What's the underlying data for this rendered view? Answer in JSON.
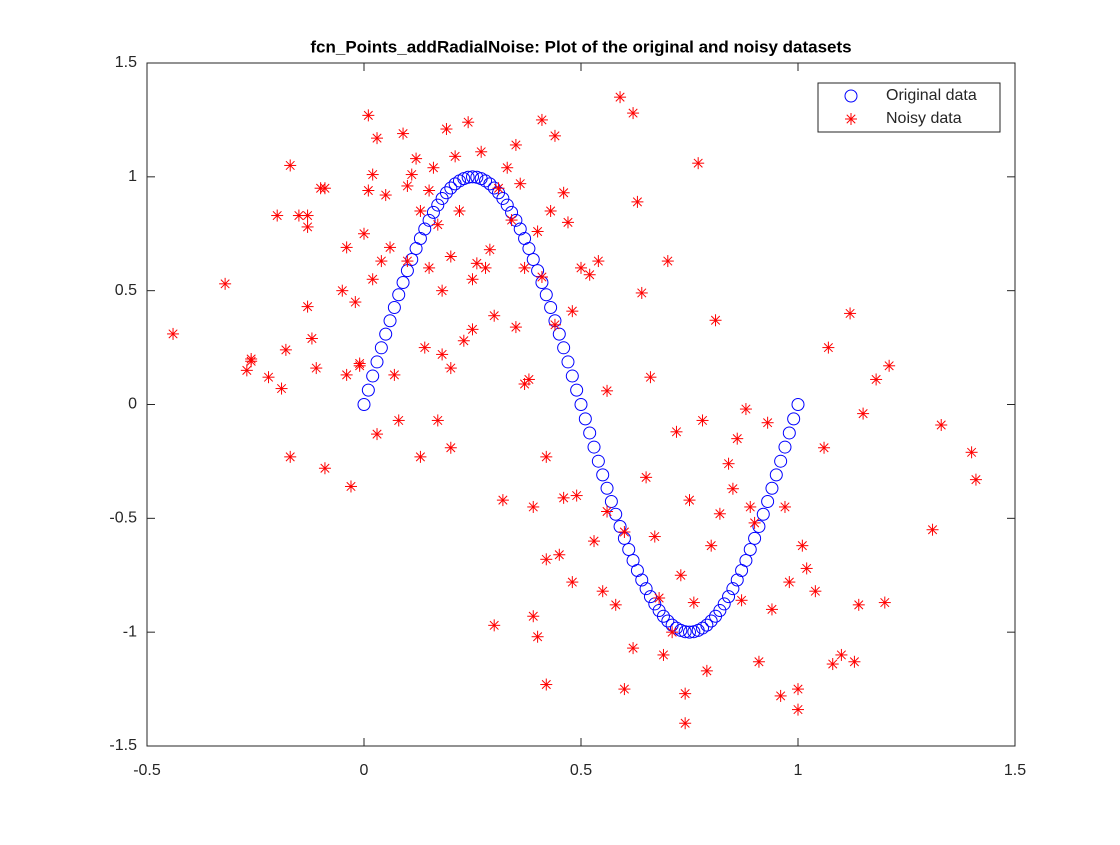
{
  "chart_data": {
    "type": "scatter",
    "title": "fcn_Points_addRadialNoise: Plot of the original and noisy datasets",
    "xlim": [
      -0.5,
      1.5
    ],
    "xticks": [
      -0.5,
      0,
      0.5,
      1,
      1.5
    ],
    "ylim": [
      -1.5,
      1.5
    ],
    "yticks": [
      -1.5,
      -1,
      -0.5,
      0,
      0.5,
      1,
      1.5
    ],
    "legend": "top-right",
    "series": [
      {
        "name": "Original data",
        "color": "#0000ff",
        "marker": "circle",
        "x": [
          0,
          0.01,
          0.02,
          0.03,
          0.04,
          0.05,
          0.06,
          0.07,
          0.08,
          0.09,
          0.1,
          0.11,
          0.12,
          0.13,
          0.14,
          0.15,
          0.16,
          0.17,
          0.18,
          0.19,
          0.2,
          0.21,
          0.22,
          0.23,
          0.24,
          0.25,
          0.26,
          0.27,
          0.28,
          0.29,
          0.3,
          0.31,
          0.32,
          0.33,
          0.34,
          0.35,
          0.36,
          0.37,
          0.38,
          0.39,
          0.4,
          0.41,
          0.42,
          0.43,
          0.44,
          0.45,
          0.46,
          0.47,
          0.48,
          0.49,
          0.5,
          0.51,
          0.52,
          0.53,
          0.54,
          0.55,
          0.56,
          0.57,
          0.58,
          0.59,
          0.6,
          0.61,
          0.62,
          0.63,
          0.64,
          0.65,
          0.66,
          0.67,
          0.68,
          0.69,
          0.7,
          0.71,
          0.72,
          0.73,
          0.74,
          0.75,
          0.76,
          0.77,
          0.78,
          0.79,
          0.8,
          0.81,
          0.82,
          0.83,
          0.84,
          0.85,
          0.86,
          0.87,
          0.88,
          0.89,
          0.9,
          0.91,
          0.92,
          0.93,
          0.94,
          0.95,
          0.96,
          0.97,
          0.98,
          0.99,
          1
        ],
        "values": [
          0,
          0.063,
          0.125,
          0.187,
          0.249,
          0.309,
          0.368,
          0.426,
          0.482,
          0.536,
          0.588,
          0.637,
          0.685,
          0.729,
          0.771,
          0.809,
          0.844,
          0.876,
          0.905,
          0.93,
          0.951,
          0.969,
          0.982,
          0.992,
          0.998,
          1,
          0.998,
          0.992,
          0.982,
          0.969,
          0.951,
          0.93,
          0.905,
          0.876,
          0.844,
          0.809,
          0.771,
          0.729,
          0.685,
          0.637,
          0.588,
          0.536,
          0.482,
          0.426,
          0.368,
          0.309,
          0.249,
          0.187,
          0.125,
          0.063,
          0,
          -0.063,
          -0.125,
          -0.187,
          -0.249,
          -0.309,
          -0.368,
          -0.426,
          -0.482,
          -0.536,
          -0.588,
          -0.637,
          -0.685,
          -0.729,
          -0.771,
          -0.809,
          -0.844,
          -0.876,
          -0.905,
          -0.93,
          -0.951,
          -0.969,
          -0.982,
          -0.992,
          -0.998,
          -1,
          -0.998,
          -0.992,
          -0.982,
          -0.969,
          -0.951,
          -0.93,
          -0.905,
          -0.876,
          -0.844,
          -0.809,
          -0.771,
          -0.729,
          -0.685,
          -0.637,
          -0.588,
          -0.536,
          -0.482,
          -0.426,
          -0.368,
          -0.309,
          -0.249,
          -0.187,
          -0.125,
          -0.063,
          0
        ]
      },
      {
        "name": "Noisy data",
        "color": "#ff0000",
        "marker": "asterisk",
        "x": [
          -0.44,
          -0.32,
          -0.27,
          -0.26,
          -0.26,
          -0.22,
          -0.2,
          -0.19,
          -0.18,
          -0.17,
          -0.17,
          -0.15,
          -0.13,
          -0.13,
          -0.13,
          -0.12,
          -0.11,
          -0.1,
          -0.09,
          -0.09,
          -0.05,
          -0.04,
          -0.04,
          -0.03,
          -0.02,
          -0.01,
          -0.01,
          0,
          0.01,
          0.01,
          0.02,
          0.02,
          0.03,
          0.03,
          0.04,
          0.05,
          0.06,
          0.07,
          0.08,
          0.09,
          0.1,
          0.1,
          0.11,
          0.12,
          0.13,
          0.13,
          0.14,
          0.15,
          0.15,
          0.16,
          0.17,
          0.17,
          0.18,
          0.18,
          0.19,
          0.2,
          0.2,
          0.2,
          0.21,
          0.22,
          0.23,
          0.24,
          0.25,
          0.25,
          0.26,
          0.27,
          0.28,
          0.29,
          0.3,
          0.3,
          0.31,
          0.32,
          0.33,
          0.34,
          0.35,
          0.35,
          0.36,
          0.37,
          0.37,
          0.38,
          0.39,
          0.39,
          0.4,
          0.4,
          0.41,
          0.41,
          0.42,
          0.42,
          0.42,
          0.43,
          0.44,
          0.44,
          0.45,
          0.46,
          0.46,
          0.47,
          0.48,
          0.48,
          0.49,
          0.5,
          0.52,
          0.53,
          0.54,
          0.55,
          0.56,
          0.56,
          0.58,
          0.59,
          0.6,
          0.6,
          0.62,
          0.62,
          0.63,
          0.64,
          0.65,
          0.66,
          0.67,
          0.68,
          0.69,
          0.7,
          0.71,
          0.72,
          0.73,
          0.74,
          0.74,
          0.75,
          0.76,
          0.77,
          0.78,
          0.79,
          0.8,
          0.81,
          0.82,
          0.84,
          0.85,
          0.86,
          0.87,
          0.88,
          0.89,
          0.9,
          0.91,
          0.93,
          0.94,
          0.96,
          0.97,
          0.98,
          1,
          1,
          1.01,
          1.02,
          1.04,
          1.06,
          1.07,
          1.08,
          1.1,
          1.12,
          1.13,
          1.14,
          1.15,
          1.18,
          1.2,
          1.21,
          1.31,
          1.33,
          1.4,
          1.41
        ],
        "values": [
          0.31,
          0.53,
          0.15,
          0.2,
          0.19,
          0.12,
          0.83,
          0.07,
          0.24,
          1.05,
          -0.23,
          0.83,
          0.83,
          0.78,
          0.43,
          0.29,
          0.16,
          0.95,
          0.95,
          -0.28,
          0.5,
          0.13,
          0.69,
          -0.36,
          0.45,
          0.18,
          0.17,
          0.75,
          1.27,
          0.94,
          1.01,
          0.55,
          1.17,
          -0.13,
          0.63,
          0.92,
          0.69,
          0.13,
          -0.07,
          1.19,
          0.63,
          0.96,
          1.01,
          1.08,
          0.85,
          -0.23,
          0.25,
          0.94,
          0.6,
          1.04,
          0.79,
          -0.07,
          0.5,
          0.22,
          1.21,
          0.65,
          0.16,
          -0.19,
          1.09,
          0.85,
          0.28,
          1.24,
          0.55,
          0.33,
          0.62,
          1.11,
          0.6,
          0.68,
          0.39,
          -0.97,
          0.95,
          -0.42,
          1.04,
          0.81,
          1.14,
          0.34,
          0.97,
          0.6,
          0.09,
          0.11,
          -0.45,
          -0.93,
          0.76,
          -1.02,
          1.25,
          0.56,
          -0.23,
          -0.68,
          -1.23,
          0.85,
          1.18,
          0.35,
          -0.66,
          0.93,
          -0.41,
          0.8,
          0.41,
          -0.78,
          -0.4,
          0.6,
          0.57,
          -0.6,
          0.63,
          -0.82,
          0.06,
          -0.47,
          -0.88,
          1.35,
          -0.56,
          -1.25,
          1.28,
          -1.07,
          0.89,
          0.49,
          -0.32,
          0.12,
          -0.58,
          -0.85,
          -1.1,
          0.63,
          -1,
          -0.12,
          -0.75,
          -1.4,
          -1.27,
          -0.42,
          -0.87,
          1.06,
          -0.07,
          -1.17,
          -0.62,
          0.37,
          -0.48,
          -0.26,
          -0.37,
          -0.15,
          -0.86,
          -0.02,
          -0.45,
          -0.52,
          -1.13,
          -0.08,
          -0.9,
          -1.28,
          -0.45,
          -0.78,
          -1.34,
          -1.25,
          -0.62,
          -0.72,
          -0.82,
          -0.19,
          0.25,
          -1.14,
          -1.1,
          0.4,
          -1.13,
          -0.88,
          -0.04,
          0.11,
          -0.87,
          0.17,
          -0.55,
          -0.09,
          -0.21,
          -0.33
        ]
      }
    ]
  }
}
